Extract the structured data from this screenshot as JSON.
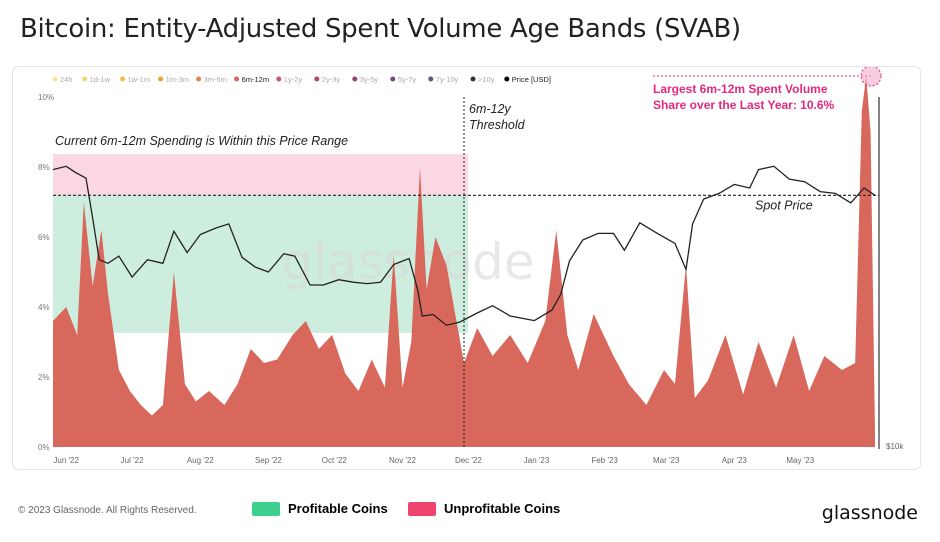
{
  "title": "Bitcoin: Entity-Adjusted Spent Volume Age Bands (SVAB)",
  "footer": {
    "copyright": "© 2023 Glassnode. All Rights Reserved.",
    "brand": "glassnode",
    "legend": [
      {
        "label": "Profitable Coins",
        "color": "#3ccf8e"
      },
      {
        "label": "Unprofitable Coins",
        "color": "#f0446f"
      }
    ]
  },
  "colors": {
    "area": "#d8675c",
    "price_line": "#222222",
    "profit_band": "#cdeedf",
    "loss_band": "#fbd7e4",
    "accent": "#e4287c"
  },
  "chart_data": {
    "type": "area",
    "watermark": "glassnode",
    "legend": [
      {
        "name": "24h",
        "color": "#f6e59a"
      },
      {
        "name": "1d-1w",
        "color": "#f3d670"
      },
      {
        "name": "1w-1m",
        "color": "#f2bf4a"
      },
      {
        "name": "1m-3m",
        "color": "#efa233"
      },
      {
        "name": "3m-6m",
        "color": "#e57f5b"
      },
      {
        "name": "6m-12m",
        "color": "#d8675c",
        "active": true
      },
      {
        "name": "1y-2y",
        "color": "#c9566e"
      },
      {
        "name": "2y-3y",
        "color": "#b3466f"
      },
      {
        "name": "3y-5y",
        "color": "#93427a"
      },
      {
        "name": "5y-7y",
        "color": "#74447d"
      },
      {
        "name": "7y-10y",
        "color": "#575b7a"
      },
      {
        "name": ">10y",
        "color": "#333333"
      },
      {
        "name": "Price [USD]",
        "color": "#000000",
        "active": true
      }
    ],
    "x_ticks": [
      "Jun '22",
      "Jul '22",
      "Aug '22",
      "Sep '22",
      "Oct '22",
      "Nov '22",
      "Dec '22",
      "Jan '23",
      "Feb '23",
      "Mar '23",
      "Apr '23",
      "May '23"
    ],
    "x_range": [
      "2022-05-26",
      "2023-06-04"
    ],
    "y_ticks": [
      "0%",
      "2%",
      "4%",
      "6%",
      "8%",
      "10%"
    ],
    "ylim": [
      0,
      10
    ],
    "right_tick": "$10k",
    "series": [
      {
        "name": "6m-12m",
        "type": "area",
        "x": [
          "2022-05-26",
          "2022-06-01",
          "2022-06-06",
          "2022-06-09",
          "2022-06-13",
          "2022-06-17",
          "2022-06-20",
          "2022-06-25",
          "2022-06-30",
          "2022-07-05",
          "2022-07-10",
          "2022-07-15",
          "2022-07-20",
          "2022-07-25",
          "2022-07-30",
          "2022-08-05",
          "2022-08-12",
          "2022-08-18",
          "2022-08-24",
          "2022-08-30",
          "2022-09-05",
          "2022-09-12",
          "2022-09-18",
          "2022-09-24",
          "2022-09-30",
          "2022-10-06",
          "2022-10-12",
          "2022-10-18",
          "2022-10-24",
          "2022-10-28",
          "2022-11-01",
          "2022-11-05",
          "2022-11-09",
          "2022-11-12",
          "2022-11-16",
          "2022-11-21",
          "2022-11-25",
          "2022-11-29",
          "2022-12-05",
          "2022-12-12",
          "2022-12-20",
          "2022-12-28",
          "2023-01-05",
          "2023-01-10",
          "2023-01-15",
          "2023-01-20",
          "2023-01-27",
          "2023-02-05",
          "2023-02-12",
          "2023-02-20",
          "2023-02-28",
          "2023-03-05",
          "2023-03-10",
          "2023-03-14",
          "2023-03-20",
          "2023-03-28",
          "2023-04-05",
          "2023-04-12",
          "2023-04-20",
          "2023-04-28",
          "2023-05-05",
          "2023-05-12",
          "2023-05-20",
          "2023-05-26",
          "2023-05-29",
          "2023-05-31",
          "2023-06-02",
          "2023-06-04"
        ],
        "values": [
          3.6,
          4.0,
          3.2,
          7.0,
          4.6,
          6.2,
          4.4,
          2.2,
          1.6,
          1.2,
          0.9,
          1.2,
          5.0,
          1.8,
          1.3,
          1.6,
          1.2,
          1.8,
          2.8,
          2.4,
          2.5,
          3.2,
          3.6,
          2.8,
          3.2,
          2.1,
          1.6,
          2.5,
          1.7,
          5.5,
          1.7,
          3.0,
          8.0,
          4.5,
          6.0,
          5.2,
          3.8,
          2.4,
          3.4,
          2.6,
          3.2,
          2.4,
          3.6,
          6.2,
          3.2,
          2.2,
          3.8,
          2.6,
          1.8,
          1.2,
          2.2,
          1.8,
          5.2,
          1.4,
          1.9,
          3.2,
          1.5,
          3.0,
          1.7,
          3.2,
          1.6,
          2.6,
          2.2,
          2.4,
          9.6,
          10.6,
          9.0,
          0.4
        ]
      },
      {
        "name": "Price [USD]",
        "type": "line",
        "x": [
          "2022-05-26",
          "2022-06-01",
          "2022-06-05",
          "2022-06-10",
          "2022-06-13",
          "2022-06-16",
          "2022-06-20",
          "2022-06-25",
          "2022-07-01",
          "2022-07-08",
          "2022-07-15",
          "2022-07-20",
          "2022-07-26",
          "2022-08-01",
          "2022-08-08",
          "2022-08-14",
          "2022-08-20",
          "2022-08-26",
          "2022-09-01",
          "2022-09-08",
          "2022-09-13",
          "2022-09-20",
          "2022-09-26",
          "2022-10-03",
          "2022-10-10",
          "2022-10-16",
          "2022-10-22",
          "2022-10-28",
          "2022-11-04",
          "2022-11-08",
          "2022-11-10",
          "2022-11-15",
          "2022-11-21",
          "2022-11-27",
          "2022-12-05",
          "2022-12-12",
          "2022-12-20",
          "2022-12-31",
          "2023-01-08",
          "2023-01-12",
          "2023-01-16",
          "2023-01-22",
          "2023-01-29",
          "2023-02-05",
          "2023-02-10",
          "2023-02-17",
          "2023-02-25",
          "2023-03-05",
          "2023-03-10",
          "2023-03-13",
          "2023-03-18",
          "2023-03-25",
          "2023-04-01",
          "2023-04-08",
          "2023-04-12",
          "2023-04-19",
          "2023-04-26",
          "2023-05-03",
          "2023-05-10",
          "2023-05-17",
          "2023-05-24",
          "2023-05-30",
          "2023-06-04"
        ],
        "values": [
          30000,
          30400,
          29700,
          29000,
          24800,
          21000,
          20700,
          21300,
          19600,
          21000,
          20700,
          23500,
          21600,
          23200,
          23800,
          24200,
          21200,
          20400,
          20000,
          21500,
          21300,
          19000,
          19000,
          19400,
          19200,
          19100,
          19200,
          20600,
          21100,
          18600,
          16800,
          16900,
          16200,
          16400,
          17000,
          17500,
          16800,
          16500,
          17200,
          18300,
          20900,
          22700,
          23300,
          23300,
          21800,
          24300,
          23300,
          22400,
          20200,
          24200,
          26700,
          27300,
          28300,
          27900,
          30000,
          30400,
          28900,
          28600,
          27500,
          27300,
          26300,
          27900,
          27100
        ]
      }
    ],
    "bands": [
      {
        "name": "Profitable Coins",
        "color": "#3ccf8e"
      },
      {
        "name": "Unprofitable Coins",
        "color": "#f0446f"
      }
    ],
    "annotations": {
      "range_note": "Current 6m-12m Spending is Within this Price Range",
      "threshold_label_1": "6m-12y",
      "threshold_label_2": "Threshold",
      "threshold_date": "2022-11-29",
      "spot_label": "Spot Price",
      "spot_price": 27100,
      "max_line_1": "Largest 6m-12m Spent Volume",
      "max_line_2": "Share over the Last Year: 10.6%",
      "max_value": 10.6
    }
  }
}
